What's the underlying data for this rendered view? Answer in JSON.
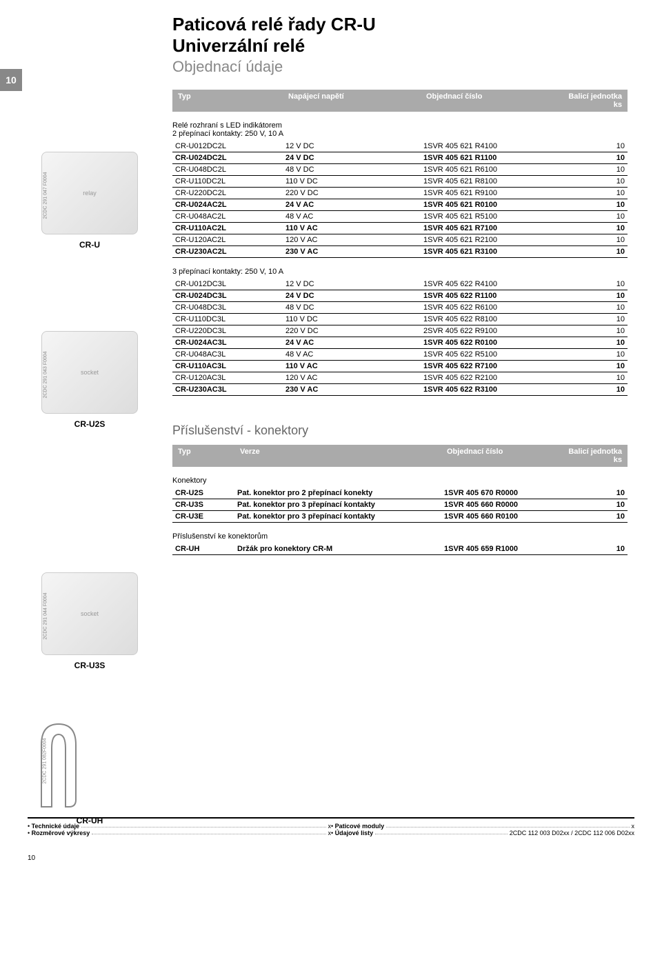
{
  "pageNumberTop": "10",
  "pageNumberBottom": "10",
  "title1": "Paticová relé řady CR-U",
  "title2": "Univerzální relé",
  "subtitle": "Objednací údaje",
  "table1Header": {
    "type": "Typ",
    "volt": "Napájecí napětí",
    "order": "Objednací číslo",
    "unit": "Balicí jednotka\nks"
  },
  "section1Title": "Relé rozhraní s LED indikátorem",
  "section1Sub": "2 přepínací kontakty: 250 V, 10 A",
  "rows1": [
    {
      "t": "CR-U012DC2L",
      "v": "12 V DC",
      "o": "1SVR 405 621 R4100",
      "u": "10",
      "b": false
    },
    {
      "t": "CR-U024DC2L",
      "v": "24 V DC",
      "o": "1SVR 405 621 R1100",
      "u": "10",
      "b": true
    },
    {
      "t": "CR-U048DC2L",
      "v": "48 V DC",
      "o": "1SVR 405 621 R6100",
      "u": "10",
      "b": false
    },
    {
      "t": "CR-U110DC2L",
      "v": "110 V DC",
      "o": "1SVR 405 621 R8100",
      "u": "10",
      "b": false
    },
    {
      "t": "CR-U220DC2L",
      "v": "220 V DC",
      "o": "1SVR 405 621 R9100",
      "u": "10",
      "b": false
    },
    {
      "t": "CR-U024AC2L",
      "v": "24 V AC",
      "o": "1SVR 405 621 R0100",
      "u": "10",
      "b": true
    },
    {
      "t": "CR-U048AC2L",
      "v": "48 V AC",
      "o": "1SVR 405 621 R5100",
      "u": "10",
      "b": false
    },
    {
      "t": "CR-U110AC2L",
      "v": "110 V AC",
      "o": "1SVR 405 621 R7100",
      "u": "10",
      "b": true
    },
    {
      "t": "CR-U120AC2L",
      "v": "120 V AC",
      "o": "1SVR 405 621 R2100",
      "u": "10",
      "b": false
    },
    {
      "t": "CR-U230AC2L",
      "v": "230 V AC",
      "o": "1SVR 405 621 R3100",
      "u": "10",
      "b": true
    }
  ],
  "section2Title": "3 přepínací kontakty: 250 V, 10 A",
  "rows2": [
    {
      "t": "CR-U012DC3L",
      "v": "12 V DC",
      "o": "1SVR 405 622 R4100",
      "u": "10",
      "b": false
    },
    {
      "t": "CR-U024DC3L",
      "v": "24 V DC",
      "o": "1SVR 405 622 R1100",
      "u": "10",
      "b": true
    },
    {
      "t": "CR-U048DC3L",
      "v": "48 V DC",
      "o": "1SVR 405 622 R6100",
      "u": "10",
      "b": false
    },
    {
      "t": "CR-U110DC3L",
      "v": "110 V DC",
      "o": "1SVR 405 622 R8100",
      "u": "10",
      "b": false
    },
    {
      "t": "CR-U220DC3L",
      "v": "220 V DC",
      "o": "2SVR 405 622 R9100",
      "u": "10",
      "b": false
    },
    {
      "t": "CR-U024AC3L",
      "v": "24 V AC",
      "o": "1SVR 405 622 R0100",
      "u": "10",
      "b": true
    },
    {
      "t": "CR-U048AC3L",
      "v": "48 V AC",
      "o": "1SVR 405 622 R5100",
      "u": "10",
      "b": false
    },
    {
      "t": "CR-U110AC3L",
      "v": "110 V AC",
      "o": "1SVR 405 622 R7100",
      "u": "10",
      "b": true
    },
    {
      "t": "CR-U120AC3L",
      "v": "120 V AC",
      "o": "1SVR 405 622 R2100",
      "u": "10",
      "b": false
    },
    {
      "t": "CR-U230AC3L",
      "v": "230 V AC",
      "o": "1SVR 405 622 R3100",
      "u": "10",
      "b": true
    }
  ],
  "accessoriesTitle": "Příslušenství - konektory",
  "table2Header": {
    "type": "Typ",
    "ver": "Verze",
    "order": "Objednací číslo",
    "unit": "Balicí jednotka\nks"
  },
  "section3Title": "Konektory",
  "rows3": [
    {
      "t": "CR-U2S",
      "v": "Pat. konektor pro 2 přepínací konekty",
      "o": "1SVR 405 670 R0000",
      "u": "10",
      "b": true
    },
    {
      "t": "CR-U3S",
      "v": "Pat. konektor pro 3 přepínací kontakty",
      "o": "1SVR 405 660 R0000",
      "u": "10",
      "b": true
    },
    {
      "t": "CR-U3E",
      "v": "Pat. konektor pro 3 přepínací kontakty",
      "o": "1SVR 405 660 R0100",
      "u": "10",
      "b": true
    }
  ],
  "section4Title": "Příslušenství ke konektorům",
  "rows4": [
    {
      "t": "CR-UH",
      "v": "Držák  pro konektory CR-M",
      "o": "1SVR 405 659 R1000",
      "u": "10",
      "b": true
    }
  ],
  "products": {
    "p1": {
      "label": "CR-U",
      "code": "2CDC 291 047 F0004"
    },
    "p2": {
      "label": "CR-U2S",
      "code": "2CDC 291 043 F0004"
    },
    "p3": {
      "label": "CR-U3S",
      "code": "2CDC 291 044 F0004"
    },
    "p4": {
      "label": "CR-UH",
      "code": "2CDC 291 082F0004"
    }
  },
  "footer": {
    "left": [
      {
        "label": "Technické údaje",
        "page": "x"
      },
      {
        "label": "Rozměrové výkresy",
        "page": "x"
      }
    ],
    "right": [
      {
        "label": "Paticové moduly",
        "page": "x"
      },
      {
        "label": "Údajové listy",
        "page": "2CDC 112 003 D02xx / 2CDC 112 006 D02xx"
      }
    ]
  }
}
